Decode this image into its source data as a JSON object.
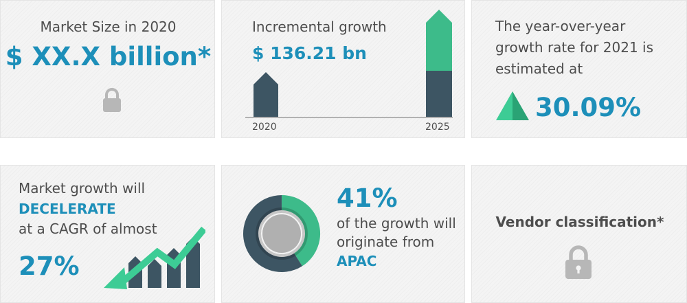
{
  "market_size": {
    "title": "Market Size in 2020",
    "value": "$ XX.X billion*",
    "icon": "lock-icon"
  },
  "incremental_growth": {
    "title": "Incremental growth",
    "value": "$ 136.21 bn",
    "labels": [
      "2020",
      "2025"
    ]
  },
  "yoy_growth": {
    "line1": "The year-over-year",
    "line2": "growth rate for 2021 is",
    "line3": "estimated at",
    "value": "30.09%",
    "icon": "up-triangle-icon"
  },
  "cagr": {
    "line1": "Market growth will",
    "line2": "DECELERATE",
    "line3": "at a CAGR of almost",
    "value": "27%",
    "icon": "declining-trend-icon"
  },
  "region": {
    "value": "41%",
    "line1": "of the growth will",
    "line2": "originate from",
    "line3": "APAC",
    "share_fraction": 0.41,
    "icon": "donut-chart-icon"
  },
  "vendor": {
    "title": "Vendor classification*",
    "icon": "lock-icon"
  },
  "colors": {
    "blue": "#1d8fb9",
    "green": "#3dbb8a",
    "dark": "#3d5563",
    "gray_lock": "#b7b7b7"
  }
}
